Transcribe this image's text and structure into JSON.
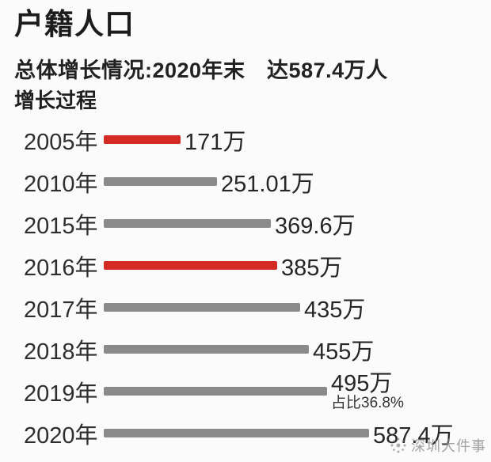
{
  "header": {
    "title": "户籍人口",
    "subtitle": "总体增长情况:2020年末　达587.4万人",
    "section_label": "增长过程"
  },
  "chart_data": {
    "type": "bar",
    "orientation": "horizontal",
    "title": "增长过程",
    "unit": "万",
    "categories": [
      "2005年",
      "2010年",
      "2015年",
      "2016年",
      "2017年",
      "2018年",
      "2019年",
      "2020年"
    ],
    "values": [
      171,
      251.01,
      369.6,
      385,
      435,
      455,
      495,
      587.4
    ],
    "value_labels": [
      "171万",
      "251.01万",
      "369.6万",
      "385万",
      "435万",
      "455万",
      "495万",
      "587.4万"
    ],
    "bar_colors": [
      "#d32a24",
      "#8a8a8a",
      "#8a8a8a",
      "#d32a24",
      "#8a8a8a",
      "#8a8a8a",
      "#8a8a8a",
      "#8a8a8a"
    ],
    "bar_color_default": "#8a8a8a",
    "bar_color_highlight": "#d32a24",
    "annotations": [
      {
        "category": "2019年",
        "text": "占比36.8%"
      }
    ],
    "xlim": [
      0,
      600
    ],
    "grid": false,
    "legend": false
  },
  "watermark": {
    "icon": "sparkle-burst-icon",
    "text": "深圳大件事"
  }
}
